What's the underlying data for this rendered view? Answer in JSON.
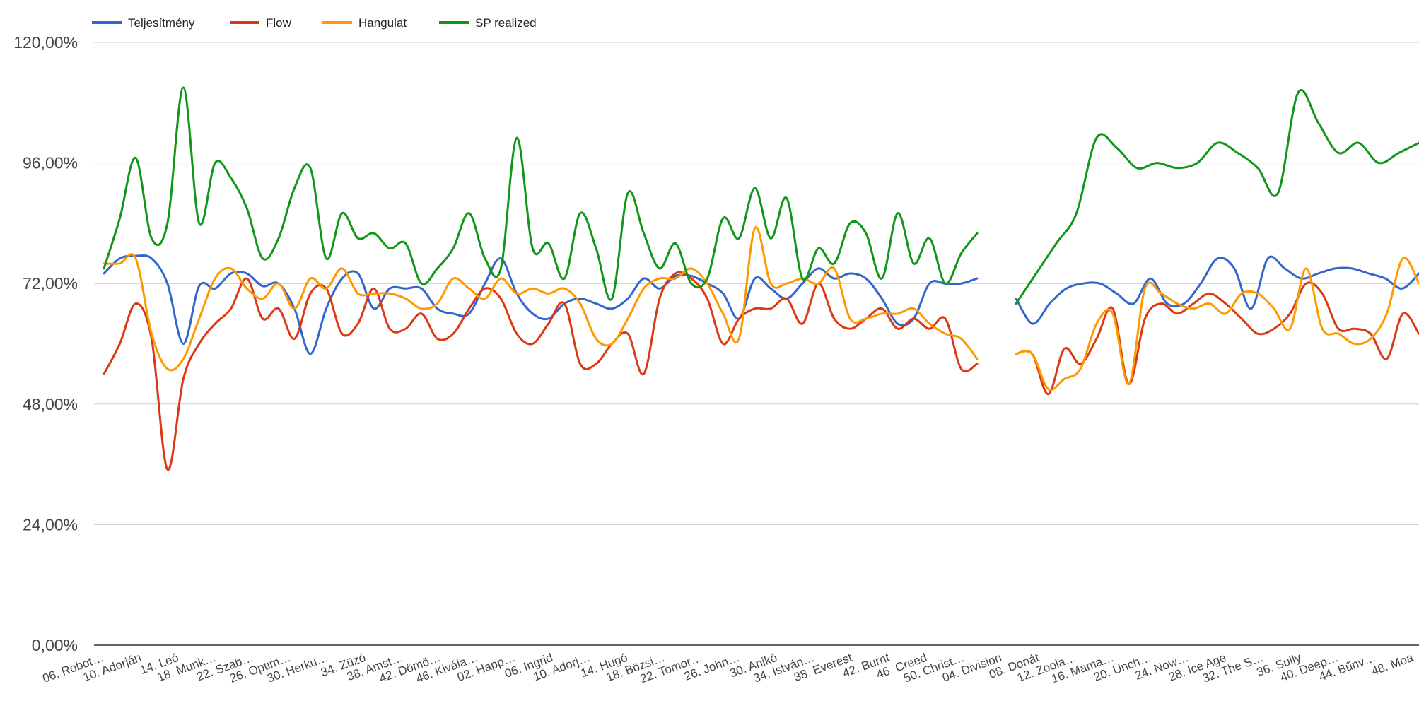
{
  "chart_data": {
    "type": "line",
    "title": "",
    "xlabel": "",
    "ylabel": "",
    "ylim": [
      0,
      120
    ],
    "yticks": [
      "0,00%",
      "24,00%",
      "48,00%",
      "72,00%",
      "96,00%",
      "120,00%"
    ],
    "grid": true,
    "legend_position": "top-left",
    "x_labels": [
      "06. Robot…",
      "10. Adorján",
      "14. Leó",
      "18. Munk…",
      "22. Szab…",
      "26. Optim…",
      "30. Herku…",
      "34. Züzó",
      "38. Amst…",
      "42. Dömö…",
      "46. Kivála…",
      "02. Happ…",
      "06. Ingrid",
      "10. Adorj…",
      "14. Hugó",
      "18. Bözsi…",
      "22. Tomor…",
      "26. John…",
      "30. Anikó",
      "34. István…",
      "38. Everest",
      "42. Burnt",
      "46. Creed",
      "50. Christ…",
      "04. Division",
      "08. Donát",
      "12. Zoola…",
      "16. Mama…",
      "20. Unch…",
      "24. Now…",
      "28. Ice Age",
      "32. The S…",
      "36. Sully",
      "40. Deep…",
      "44. Bűnv…",
      "48. Moa"
    ],
    "segments": [
      37,
      37
    ],
    "series": [
      {
        "name": "Teljesítmény",
        "color": "#3366cc",
        "values": [
          74,
          77,
          77.5,
          77,
          72,
          60,
          71.5,
          71,
          74,
          74,
          71.5,
          72,
          67,
          58,
          67,
          73,
          74,
          67,
          71,
          71,
          71,
          67,
          66,
          66,
          72,
          77,
          70,
          66,
          65,
          68,
          69,
          68,
          67,
          69,
          73,
          71,
          73.5,
          73.5,
          72,
          70,
          65,
          73,
          71,
          69,
          72,
          75,
          73,
          74,
          73,
          69,
          64,
          65,
          72,
          72,
          72,
          73,
          69,
          64,
          68,
          71,
          72,
          72,
          70,
          68,
          73,
          68,
          68,
          72,
          77,
          75,
          67,
          77,
          75,
          73,
          74,
          75,
          75,
          74,
          73,
          71,
          74
        ]
      },
      {
        "name": "Flow",
        "color": "#dc3912",
        "values": [
          54,
          60,
          68,
          61,
          35,
          53,
          60,
          64,
          67,
          73,
          65,
          67,
          61,
          70,
          71,
          62,
          64,
          71,
          63,
          63,
          66,
          61,
          62,
          67,
          71,
          69,
          62,
          60,
          64,
          68,
          56,
          56,
          60,
          62,
          54,
          69,
          74,
          73,
          69,
          60,
          65,
          67,
          67,
          69,
          64,
          72,
          65,
          63,
          65,
          67,
          63,
          65,
          63,
          65,
          55,
          56,
          58,
          58,
          50,
          59,
          56,
          61,
          67,
          52,
          65,
          68,
          66,
          68,
          70,
          68,
          65,
          62,
          63,
          66,
          72,
          70,
          63,
          63,
          62,
          57,
          66,
          62
        ]
      },
      {
        "name": "Hangulat",
        "color": "#ff9900",
        "values": [
          76,
          76,
          77,
          62,
          55,
          57,
          65,
          73,
          75,
          71,
          69,
          72,
          67,
          73,
          71,
          75,
          70,
          70,
          70,
          69,
          67,
          68,
          73,
          71,
          69,
          73,
          70,
          71,
          70,
          71,
          68,
          61,
          60,
          65,
          71,
          73,
          73,
          75,
          72,
          66,
          61,
          83,
          72,
          72,
          73,
          72,
          75,
          65,
          65,
          66,
          66,
          67,
          64,
          62,
          61,
          57,
          58,
          58,
          51,
          53,
          55,
          64,
          66,
          52,
          71,
          70,
          68,
          67,
          68,
          66,
          70,
          70,
          67,
          63,
          75,
          63,
          62,
          60,
          61,
          66,
          77,
          72
        ]
      },
      {
        "name": "SP realized",
        "color": "#109618",
        "values": [
          75,
          85,
          97,
          81,
          84,
          111,
          84,
          96,
          93,
          87,
          77,
          81,
          91,
          95,
          77,
          86,
          81,
          82,
          79,
          80,
          72,
          75,
          79,
          86,
          77,
          75,
          101,
          79,
          80,
          73,
          86,
          79,
          69,
          90,
          82,
          75,
          80,
          72,
          73,
          85,
          81,
          91,
          81,
          89,
          73,
          79,
          76,
          84,
          82,
          73,
          86,
          76,
          81,
          72,
          78,
          82,
          68,
          74,
          80,
          86,
          101,
          99,
          95,
          96,
          95,
          96,
          100,
          98,
          95,
          90,
          110,
          104,
          98,
          100,
          96,
          98,
          100
        ]
      }
    ]
  }
}
